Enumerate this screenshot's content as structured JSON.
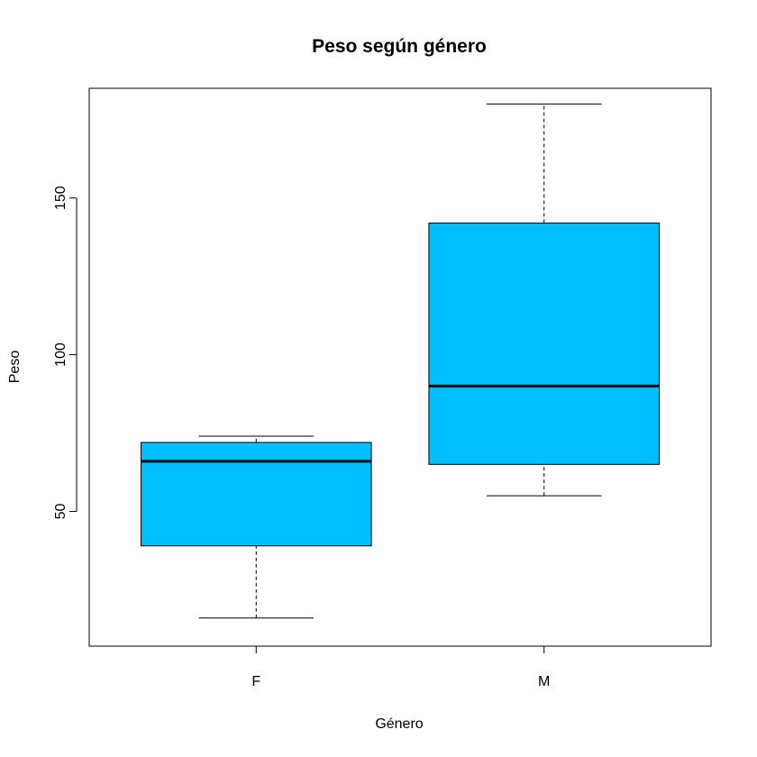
{
  "chart_data": {
    "type": "boxplot",
    "title": "Peso según género",
    "xlabel": "Género",
    "ylabel": "Peso",
    "categories": [
      "F",
      "M"
    ],
    "ylim": [
      7,
      185
    ],
    "yticks": [
      50,
      100,
      150
    ],
    "box_fill": "#00BFFF",
    "boxes": [
      {
        "category": "F",
        "whisker_low": 16,
        "q1": 39,
        "median": 66,
        "q3": 72,
        "whisker_high": 74
      },
      {
        "category": "M",
        "whisker_low": 55,
        "q1": 65,
        "median": 90,
        "q3": 142,
        "whisker_high": 180
      }
    ]
  }
}
